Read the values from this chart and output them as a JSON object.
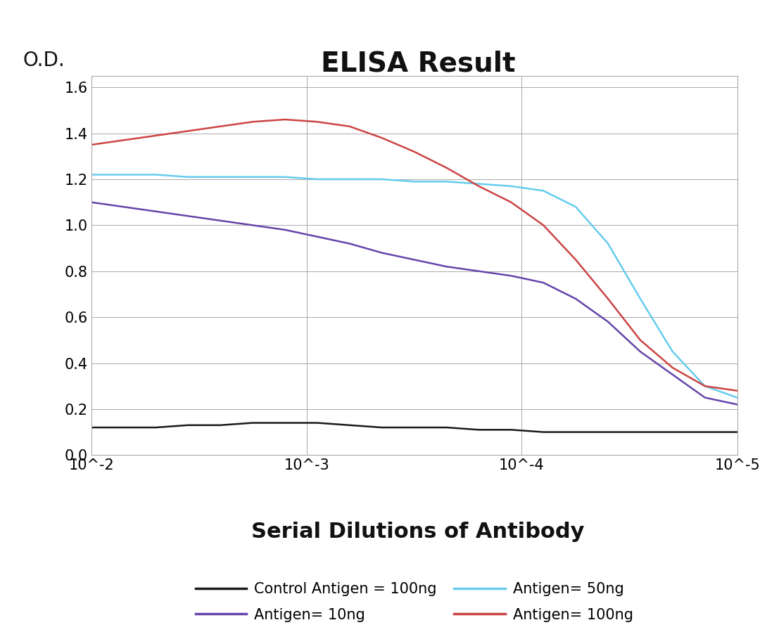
{
  "title": "ELISA Result",
  "od_label": "O.D.",
  "xlabel": "Serial Dilutions of Antibody",
  "background_color": "#ffffff",
  "title_fontsize": 28,
  "xlabel_fontsize": 22,
  "od_fontsize": 20,
  "ylim": [
    0,
    1.65
  ],
  "yticks": [
    0,
    0.2,
    0.4,
    0.6,
    0.8,
    1.0,
    1.2,
    1.4,
    1.6
  ],
  "x_positions": [
    0,
    1,
    2,
    3,
    4,
    5,
    6,
    7,
    8,
    9,
    10,
    11,
    12,
    13,
    14,
    15,
    16,
    17,
    18,
    19,
    20
  ],
  "xtick_positions": [
    0,
    6.67,
    13.33,
    20
  ],
  "xtick_labels": [
    "10^-2",
    "10^-3",
    "10^-4",
    "10^-5"
  ],
  "series": {
    "control": {
      "label": "Control Antigen = 100ng",
      "color": "#1a1a1a",
      "linewidth": 1.8,
      "y": [
        0.12,
        0.12,
        0.12,
        0.13,
        0.13,
        0.14,
        0.14,
        0.14,
        0.13,
        0.12,
        0.12,
        0.12,
        0.11,
        0.11,
        0.1,
        0.1,
        0.1,
        0.1,
        0.1,
        0.1,
        0.1
      ]
    },
    "antigen_10ng": {
      "label": "Antigen= 10ng",
      "color": "#6644aa",
      "linewidth": 1.8,
      "y": [
        1.1,
        1.08,
        1.06,
        1.04,
        1.02,
        1.0,
        0.98,
        0.95,
        0.92,
        0.88,
        0.85,
        0.82,
        0.8,
        0.78,
        0.75,
        0.68,
        0.58,
        0.45,
        0.35,
        0.25,
        0.22
      ]
    },
    "antigen_50ng": {
      "label": "Antigen= 50ng",
      "color": "#66ccee",
      "linewidth": 1.8,
      "y": [
        1.22,
        1.22,
        1.22,
        1.21,
        1.21,
        1.21,
        1.21,
        1.2,
        1.2,
        1.2,
        1.19,
        1.19,
        1.18,
        1.17,
        1.15,
        1.08,
        0.92,
        0.68,
        0.45,
        0.3,
        0.25
      ]
    },
    "antigen_100ng": {
      "label": "Antigen= 100ng",
      "color": "#cc4444",
      "linewidth": 1.8,
      "y": [
        1.35,
        1.37,
        1.39,
        1.41,
        1.43,
        1.45,
        1.46,
        1.45,
        1.43,
        1.38,
        1.32,
        1.25,
        1.17,
        1.1,
        1.0,
        0.85,
        0.68,
        0.5,
        0.38,
        0.3,
        0.28
      ]
    }
  },
  "legend_row1": [
    "control",
    "antigen_10ng"
  ],
  "legend_row2": [
    "antigen_50ng",
    "antigen_100ng"
  ]
}
